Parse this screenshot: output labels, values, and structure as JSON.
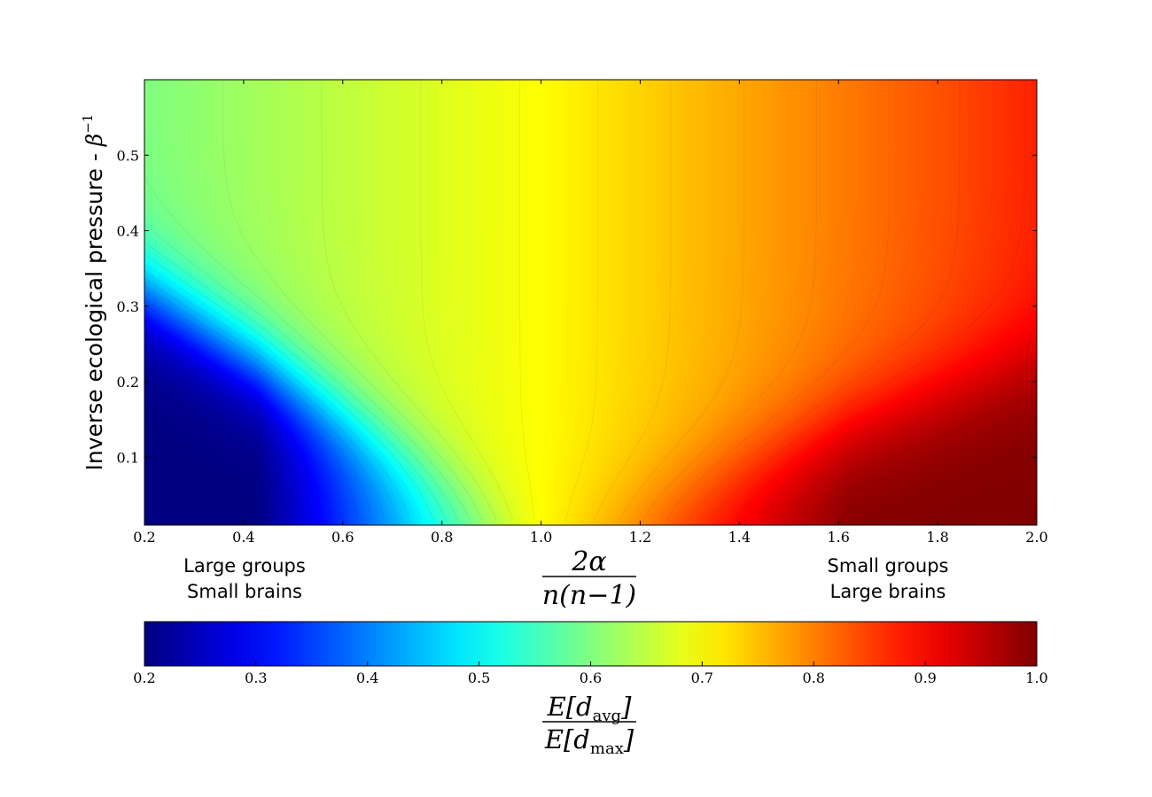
{
  "chart_data": {
    "type": "heatmap",
    "plot_kind": "filled contour",
    "colormap": "jet",
    "xlabel": {
      "numerator": "2α",
      "denominator": "n(n−1)"
    },
    "ylabel": {
      "text": "Inverse ecological pressure - ",
      "symbol": "β",
      "exponent": "−1"
    },
    "xlim": [
      0.2,
      2.0
    ],
    "ylim": [
      0.01,
      0.6
    ],
    "xticks": [
      "0.2",
      "0.4",
      "0.6",
      "0.8",
      "1.0",
      "1.2",
      "1.4",
      "1.6",
      "1.8",
      "2.0"
    ],
    "yticks": [
      "0.1",
      "0.2",
      "0.3",
      "0.4",
      "0.5"
    ],
    "annotations": [
      {
        "lines": [
          "Large groups",
          "Small brains"
        ],
        "near_x": 0.4
      },
      {
        "lines": [
          "Small groups",
          "Large brains"
        ],
        "near_x": 1.8
      }
    ],
    "colorbar": {
      "range": [
        0.2,
        1.0
      ],
      "ticks": [
        "0.2",
        "0.3",
        "0.4",
        "0.5",
        "0.6",
        "0.7",
        "0.8",
        "0.9",
        "1.0"
      ],
      "label": {
        "numerator": {
          "base": "E[d",
          "sub": "avg",
          "close": "]"
        },
        "denominator": {
          "base": "E[d",
          "sub": "max",
          "close": "]"
        }
      }
    },
    "field_description": {
      "value_at_x_1": 0.7,
      "value_at_x_0.2_high_y": 0.6,
      "value_at_x_2.0_high_y": 0.87,
      "low_region_floor": 0.2,
      "high_region_ceiling": 1.0
    }
  }
}
